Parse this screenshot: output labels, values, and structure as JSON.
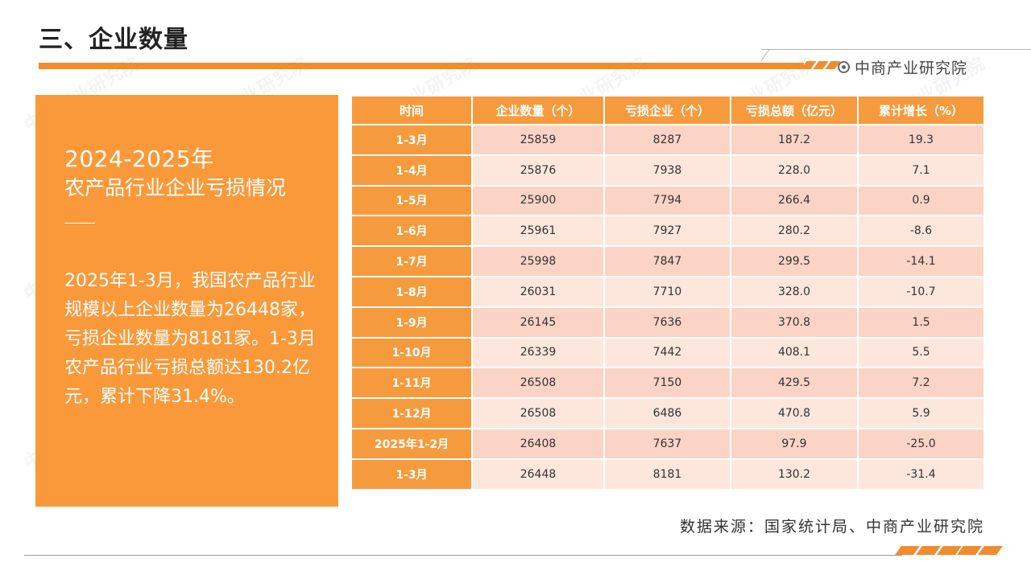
{
  "header": {
    "title": "三、企业数量",
    "brand": "中商产业研究院",
    "brand_icon": "target-icon",
    "accent_color": "#f08c2d"
  },
  "left_panel": {
    "year": "2024-2025年",
    "subtitle": "农产品行业企业亏损情况",
    "description": "2025年1-3月，我国农产品行业规模以上企业数量为26448家，亏损企业数量为8181家。1-3月农产品行业亏损总额达130.2亿元，累计下降31.4%。",
    "background_color": "#fa993a"
  },
  "table": {
    "headers": [
      "时间",
      "企业数量（个）",
      "亏损企业（个）",
      "亏损总额（亿元）",
      "累计增长（%）"
    ],
    "rows": [
      [
        "1-3月",
        "25859",
        "8287",
        "187.2",
        "19.3"
      ],
      [
        "1-4月",
        "25876",
        "7938",
        "228.0",
        "7.1"
      ],
      [
        "1-5月",
        "25900",
        "7794",
        "266.4",
        "0.9"
      ],
      [
        "1-6月",
        "25961",
        "7927",
        "280.2",
        "-8.6"
      ],
      [
        "1-7月",
        "25998",
        "7847",
        "299.5",
        "-14.1"
      ],
      [
        "1-8月",
        "26031",
        "7710",
        "328.0",
        "-10.7"
      ],
      [
        "1-9月",
        "26145",
        "7636",
        "370.8",
        "1.5"
      ],
      [
        "1-10月",
        "26339",
        "7442",
        "408.1",
        "5.5"
      ],
      [
        "1-11月",
        "26508",
        "7150",
        "429.5",
        "7.2"
      ],
      [
        "1-12月",
        "26508",
        "6486",
        "470.8",
        "5.9"
      ],
      [
        "2025年1-2月",
        "26408",
        "7637",
        "97.9",
        "-25.0"
      ],
      [
        "1-3月",
        "26448",
        "8181",
        "130.2",
        "-31.4"
      ]
    ]
  },
  "footer": {
    "source": "数据来源：国家统计局、中商产业研究院"
  },
  "watermark": {
    "text": "中商产业研究院"
  }
}
